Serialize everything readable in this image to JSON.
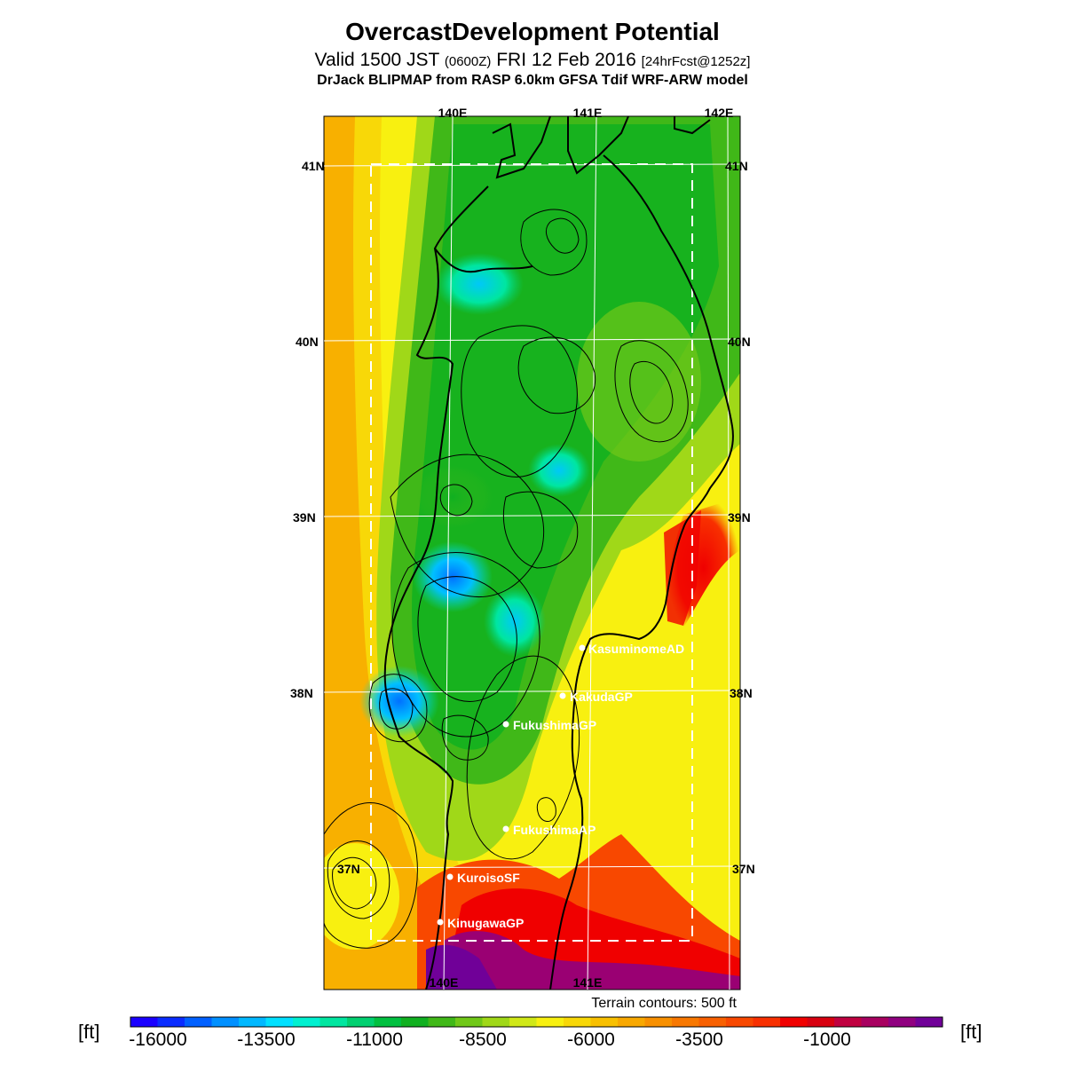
{
  "header": {
    "title": "OvercastDevelopment Potential",
    "valid_prefix": "Valid 1500 JST",
    "valid_zulu": "(0600Z)",
    "valid_date": "FRI 12 Feb 2016",
    "forecast": "[24hrFcst@1252z]",
    "model": "DrJack BLIPMAP from RASP 6.0km GFSA Tdif WRF-ARW model"
  },
  "map": {
    "lon_labels_top": [
      "140E",
      "141E",
      "142E"
    ],
    "lon_labels_bottom": [
      "140E",
      "141E"
    ],
    "lat_labels": [
      "41N",
      "40N",
      "39N",
      "38N",
      "37N"
    ],
    "stations": [
      {
        "name": "KasuminomeAD"
      },
      {
        "name": "KakudaGP"
      },
      {
        "name": "FukushimaGP"
      },
      {
        "name": "FukushimaAP"
      },
      {
        "name": "KuroisoSF"
      },
      {
        "name": "KinugawaGP"
      }
    ],
    "terrain_note": "Terrain contours: 500 ft"
  },
  "colorbar": {
    "unit": "[ft]",
    "ticks": [
      "-16000",
      "-13500",
      "-11000",
      "-8500",
      "-6000",
      "-3500",
      "-1000"
    ],
    "colors": [
      "#1a00ff",
      "#0a2cff",
      "#0060ff",
      "#0090ff",
      "#00b8ff",
      "#00e0ff",
      "#00f0d0",
      "#00e6a0",
      "#00d070",
      "#00c040",
      "#10b020",
      "#40b818",
      "#70c818",
      "#a0d818",
      "#d0e818",
      "#f8f010",
      "#f8d808",
      "#f8c000",
      "#f8a800",
      "#f89000",
      "#f87800",
      "#f86000",
      "#f84800",
      "#f83000",
      "#f00000",
      "#d80010",
      "#c00040",
      "#a80060",
      "#900080",
      "#700098"
    ]
  }
}
